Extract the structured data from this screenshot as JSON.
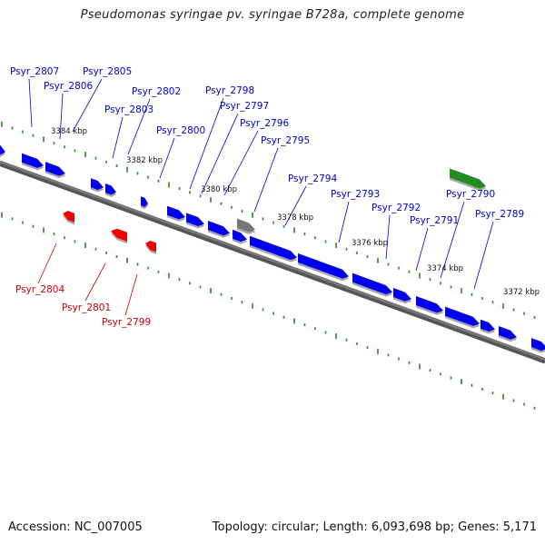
{
  "title": "Pseudomonas syringae pv. syringae B728a, complete genome",
  "footer": {
    "accession": "Accession: NC_007005",
    "stats": "Topology: circular; Length: 6,093,698 bp; Genes: 5,171"
  },
  "colors": {
    "forward": "#0000ee",
    "reverse": "#ee0000",
    "highlight": "#228b22",
    "neutral": "#777777",
    "backbone": "#777777",
    "ticks": "#228b22",
    "label_forward": "#0000cc",
    "label_reverse": "#cc0000"
  },
  "scale_labels": [
    "3384 kbp",
    "3382 kbp",
    "3380 kbp",
    "3378 kbp",
    "3376 kbp",
    "3374 kbp",
    "3372 kbp"
  ],
  "genes_forward": [
    "Psyr_2807",
    "Psyr_2806",
    "Psyr_2805",
    "Psyr_2803",
    "Psyr_2802",
    "Psyr_2800",
    "Psyr_2798",
    "Psyr_2797",
    "Psyr_2796",
    "Psyr_2795",
    "Psyr_2794",
    "Psyr_2793",
    "Psyr_2792",
    "Psyr_2791",
    "Psyr_2790",
    "Psyr_2789"
  ],
  "genes_reverse": [
    "Psyr_2804",
    "Psyr_2801",
    "Psyr_2799"
  ]
}
